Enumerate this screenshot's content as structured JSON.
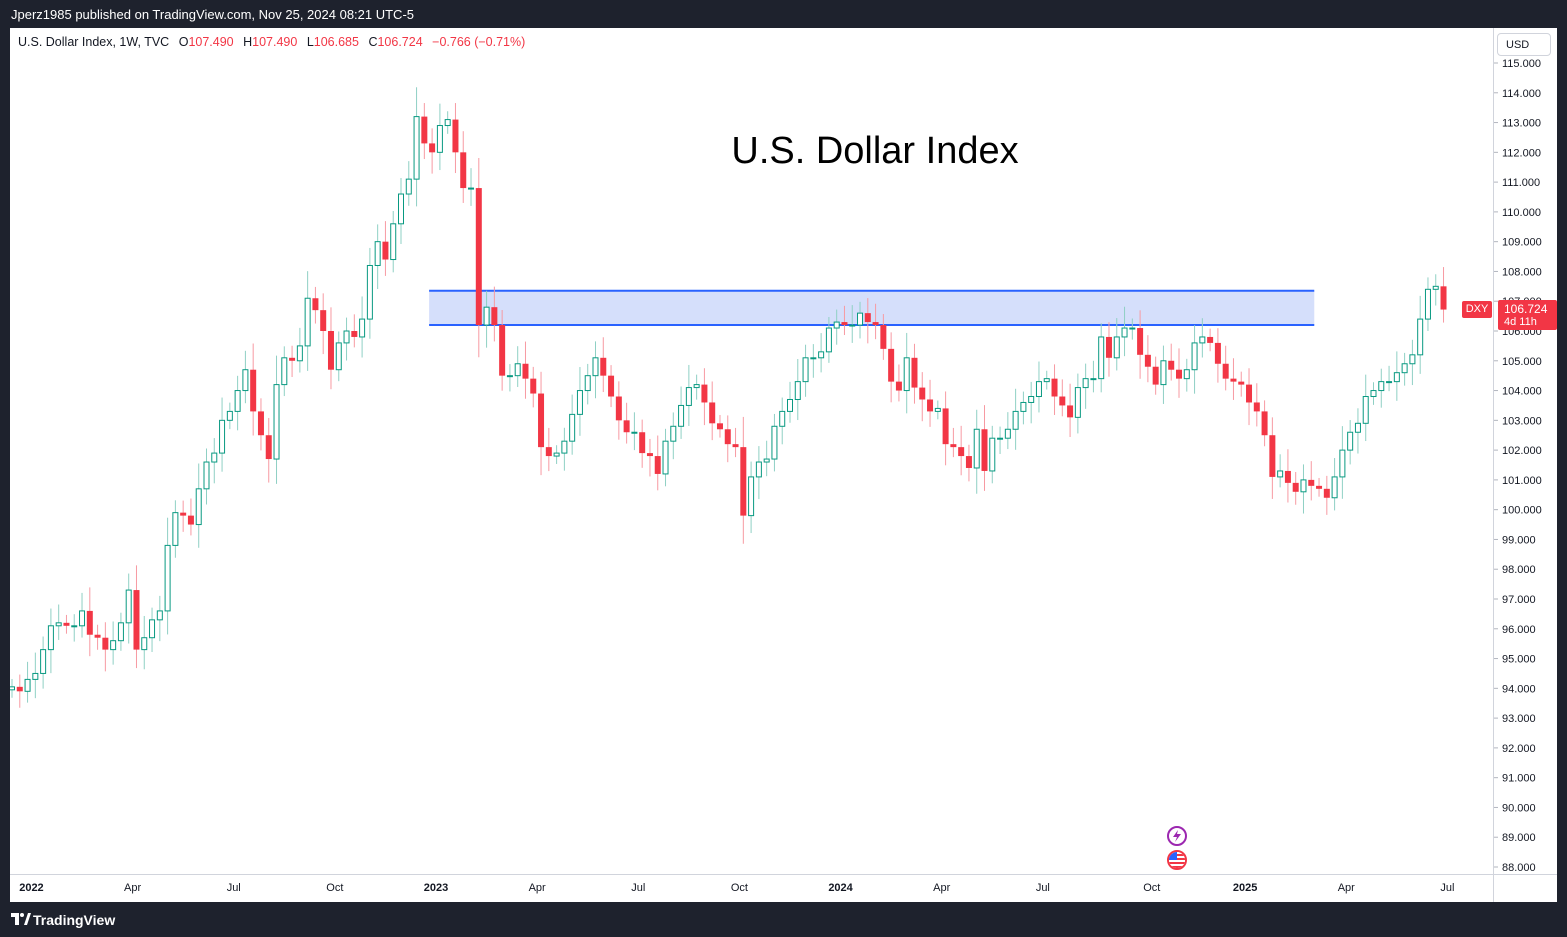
{
  "header": {
    "publish_line": "Jperz1985 published on TradingView.com, Nov 25, 2024 08:21 UTC-5"
  },
  "legend": {
    "symbol": "U.S. Dollar Index, 1W, TVC",
    "open_label": "O",
    "open": "107.490",
    "high_label": "H",
    "high": "107.490",
    "low_label": "L",
    "low": "106.685",
    "close_label": "C",
    "close": "106.724",
    "change": "−0.766 (−0.71%)"
  },
  "currency_button": "USD",
  "price_tag": {
    "symbol": "DXY",
    "price": "106.724",
    "countdown": "4d 11h"
  },
  "footer": {
    "brand": "TradingView"
  },
  "icons": [
    "lightning-icon",
    "us-flag-icon"
  ],
  "colors": {
    "up": "#089981",
    "down": "#f23645",
    "zone_fill": "#d0dcfb",
    "zone_line": "#2962ff",
    "wick_up": "#8fd0c4",
    "wick_down": "#f79aa2"
  },
  "chart_data": {
    "type": "candlestick",
    "title": "U.S. Dollar Index",
    "interval": "1W",
    "ylim": [
      87.5,
      115.7
    ],
    "y_ticks": [
      "115.000",
      "114.000",
      "113.000",
      "112.000",
      "111.000",
      "110.000",
      "109.000",
      "108.000",
      "107.000",
      "106.000",
      "105.000",
      "104.000",
      "103.000",
      "102.000",
      "101.000",
      "100.000",
      "99.000",
      "98.000",
      "97.000",
      "96.000",
      "95.000",
      "94.000",
      "93.000",
      "92.000",
      "91.000",
      "90.000",
      "89.000",
      "88.000"
    ],
    "x_labels": [
      {
        "label": "2022",
        "week": 2.5,
        "bold": true
      },
      {
        "label": "Apr",
        "week": 15.5
      },
      {
        "label": "Jul",
        "week": 28.5
      },
      {
        "label": "Oct",
        "week": 41.5
      },
      {
        "label": "2023",
        "week": 54.5,
        "bold": true
      },
      {
        "label": "Apr",
        "week": 67.5
      },
      {
        "label": "Jul",
        "week": 80.5
      },
      {
        "label": "Oct",
        "week": 93.5
      },
      {
        "label": "2024",
        "week": 106.5,
        "bold": true
      },
      {
        "label": "Apr",
        "week": 119.5
      },
      {
        "label": "Jul",
        "week": 132.5
      },
      {
        "label": "Oct",
        "week": 146.5
      },
      {
        "label": "2025",
        "week": 158.5,
        "bold": true
      },
      {
        "label": "Apr",
        "week": 171.5
      },
      {
        "label": "Jul",
        "week": 184.5
      }
    ],
    "zone": {
      "top": 107.35,
      "bottom": 106.2,
      "from_week": 54,
      "to_week": 167
    },
    "closes": [
      94.05,
      93.9,
      94.3,
      94.5,
      95.3,
      96.1,
      96.2,
      96.1,
      96.1,
      96.6,
      95.8,
      95.7,
      95.3,
      95.6,
      96.2,
      97.3,
      95.3,
      95.7,
      96.3,
      96.6,
      98.8,
      99.9,
      99.8,
      99.5,
      100.7,
      101.6,
      101.9,
      103.0,
      103.3,
      104.0,
      104.7,
      103.3,
      102.5,
      101.7,
      104.2,
      105.1,
      105.0,
      105.5,
      107.1,
      106.7,
      106.0,
      104.7,
      105.6,
      106.0,
      105.8,
      106.4,
      108.2,
      109.0,
      108.4,
      109.6,
      110.6,
      111.1,
      113.2,
      112.3,
      112.0,
      112.9,
      113.1,
      112.0,
      110.8,
      110.8,
      106.2,
      106.8,
      106.2,
      104.5,
      104.5,
      104.9,
      104.4,
      103.9,
      102.1,
      101.8,
      101.9,
      102.3,
      103.2,
      104.0,
      104.5,
      105.1,
      104.5,
      103.8,
      103.0,
      102.6,
      102.6,
      101.9,
      101.8,
      101.2,
      102.3,
      102.8,
      103.5,
      104.1,
      104.2,
      103.6,
      102.9,
      102.7,
      102.2,
      102.1,
      99.8,
      101.1,
      101.6,
      101.7,
      102.8,
      103.3,
      103.7,
      104.3,
      105.1,
      105.1,
      105.3,
      106.1,
      106.3,
      106.2,
      106.2,
      106.6,
      106.3,
      106.2,
      105.4,
      104.3,
      104.0,
      105.1,
      104.1,
      103.7,
      103.3,
      103.4,
      102.2,
      102.1,
      101.8,
      101.4,
      102.7,
      101.3,
      102.4,
      102.4,
      102.7,
      103.3,
      103.6,
      103.8,
      104.3,
      104.4,
      103.8,
      103.5,
      103.1,
      104.1,
      104.4,
      104.4,
      105.8,
      105.1,
      105.8,
      106.1,
      106.1,
      105.2,
      104.8,
      104.2,
      105.0,
      104.7,
      104.4,
      104.7,
      105.6,
      105.8,
      105.6,
      104.9,
      104.4,
      104.3,
      104.2,
      103.6,
      103.3,
      102.5,
      101.1,
      101.3,
      100.9,
      100.6,
      101.0,
      100.8,
      100.7,
      100.4,
      101.1,
      102.0,
      102.6,
      102.9,
      103.8,
      104.0,
      104.3,
      104.3,
      104.6,
      104.9,
      105.2,
      106.4,
      107.4,
      107.5,
      106.72
    ]
  }
}
